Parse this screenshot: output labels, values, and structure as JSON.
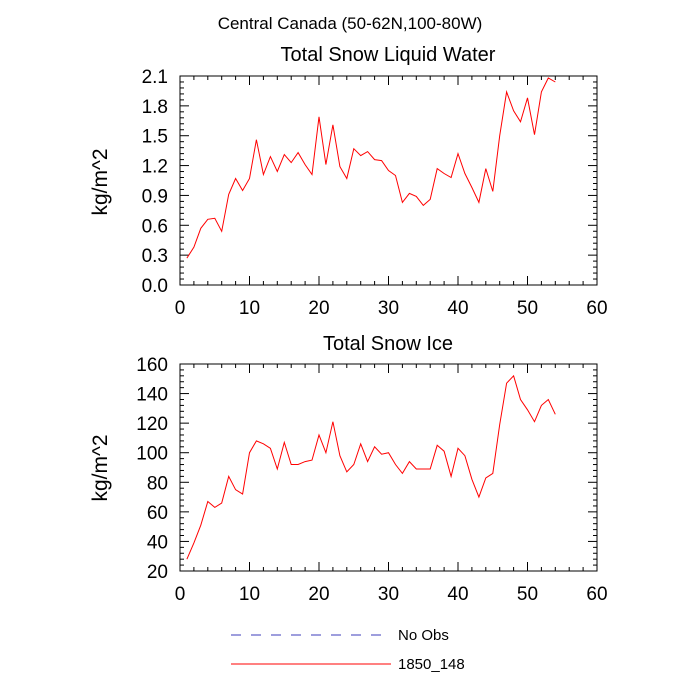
{
  "figure": {
    "title": "Central Canada (50-62N,100-80W)"
  },
  "chart_data": [
    {
      "type": "line",
      "title": "Total Snow Liquid Water",
      "xlabel": "",
      "ylabel": "kg/m^2",
      "xlim": [
        0,
        60
      ],
      "ylim": [
        0.0,
        2.1
      ],
      "xticks": [
        0,
        10,
        20,
        30,
        40,
        50,
        60
      ],
      "xtick_labels": [
        "0",
        "10",
        "20",
        "30",
        "40",
        "50",
        "60"
      ],
      "yticks": [
        0.0,
        0.3,
        0.6,
        0.9,
        1.2,
        1.5,
        1.8,
        2.1
      ],
      "ytick_labels": [
        "0.0",
        "0.3",
        "0.6",
        "0.9",
        "1.2",
        "1.5",
        "1.8",
        "2.1"
      ],
      "grid": false,
      "series": [
        {
          "name": "1850_148",
          "color": "#ff0000",
          "x": [
            1,
            2,
            3,
            4,
            5,
            6,
            7,
            8,
            9,
            10,
            11,
            12,
            13,
            14,
            15,
            16,
            17,
            18,
            19,
            20,
            21,
            22,
            23,
            24,
            25,
            26,
            27,
            28,
            29,
            30,
            31,
            32,
            33,
            34,
            35,
            36,
            37,
            38,
            39,
            40,
            41,
            42,
            43,
            44,
            45,
            46,
            47,
            48,
            49,
            50,
            51,
            52,
            53,
            54
          ],
          "y": [
            0.27,
            0.38,
            0.57,
            0.66,
            0.67,
            0.54,
            0.91,
            1.07,
            0.95,
            1.07,
            1.46,
            1.11,
            1.29,
            1.14,
            1.31,
            1.23,
            1.33,
            1.21,
            1.11,
            1.69,
            1.21,
            1.61,
            1.19,
            1.07,
            1.37,
            1.3,
            1.34,
            1.26,
            1.25,
            1.15,
            1.1,
            0.83,
            0.92,
            0.89,
            0.8,
            0.86,
            1.17,
            1.12,
            1.08,
            1.32,
            1.12,
            0.98,
            0.83,
            1.17,
            0.94,
            1.5,
            1.94,
            1.75,
            1.64,
            1.88,
            1.51,
            1.94,
            2.08,
            2.04
          ]
        }
      ]
    },
    {
      "type": "line",
      "title": "Total Snow Ice",
      "xlabel": "",
      "ylabel": "kg/m^2",
      "xlim": [
        0,
        60
      ],
      "ylim": [
        20,
        160
      ],
      "xticks": [
        0,
        10,
        20,
        30,
        40,
        50,
        60
      ],
      "xtick_labels": [
        "0",
        "10",
        "20",
        "30",
        "40",
        "50",
        "60"
      ],
      "yticks": [
        20,
        40,
        60,
        80,
        100,
        120,
        140,
        160
      ],
      "ytick_labels": [
        "20",
        "40",
        "60",
        "80",
        "100",
        "120",
        "140",
        "160"
      ],
      "grid": false,
      "series": [
        {
          "name": "1850_148",
          "color": "#ff0000",
          "x": [
            1,
            2,
            3,
            4,
            5,
            6,
            7,
            8,
            9,
            10,
            11,
            12,
            13,
            14,
            15,
            16,
            17,
            18,
            19,
            20,
            21,
            22,
            23,
            24,
            25,
            26,
            27,
            28,
            29,
            30,
            31,
            32,
            33,
            34,
            35,
            36,
            37,
            38,
            39,
            40,
            41,
            42,
            43,
            44,
            45,
            46,
            47,
            48,
            49,
            50,
            51,
            52,
            53,
            54
          ],
          "y": [
            28,
            39,
            51,
            67,
            63,
            66,
            84,
            75,
            72,
            100,
            108,
            106,
            103,
            89,
            107,
            92,
            92,
            94,
            95,
            112,
            100,
            121,
            98,
            87,
            92,
            106,
            94,
            104,
            99,
            100,
            92,
            86,
            94,
            89,
            89,
            89,
            105,
            101,
            84,
            103,
            98,
            82,
            70,
            83,
            86,
            119,
            147,
            152,
            136,
            129,
            121,
            132,
            136,
            126
          ]
        }
      ]
    }
  ],
  "legend": {
    "placement": "bottom-center",
    "items": [
      {
        "label": "No Obs",
        "color": "#3d3dbb",
        "dash": "dashed"
      },
      {
        "label": "1850_148",
        "color": "#ff0000",
        "dash": "solid"
      }
    ]
  }
}
